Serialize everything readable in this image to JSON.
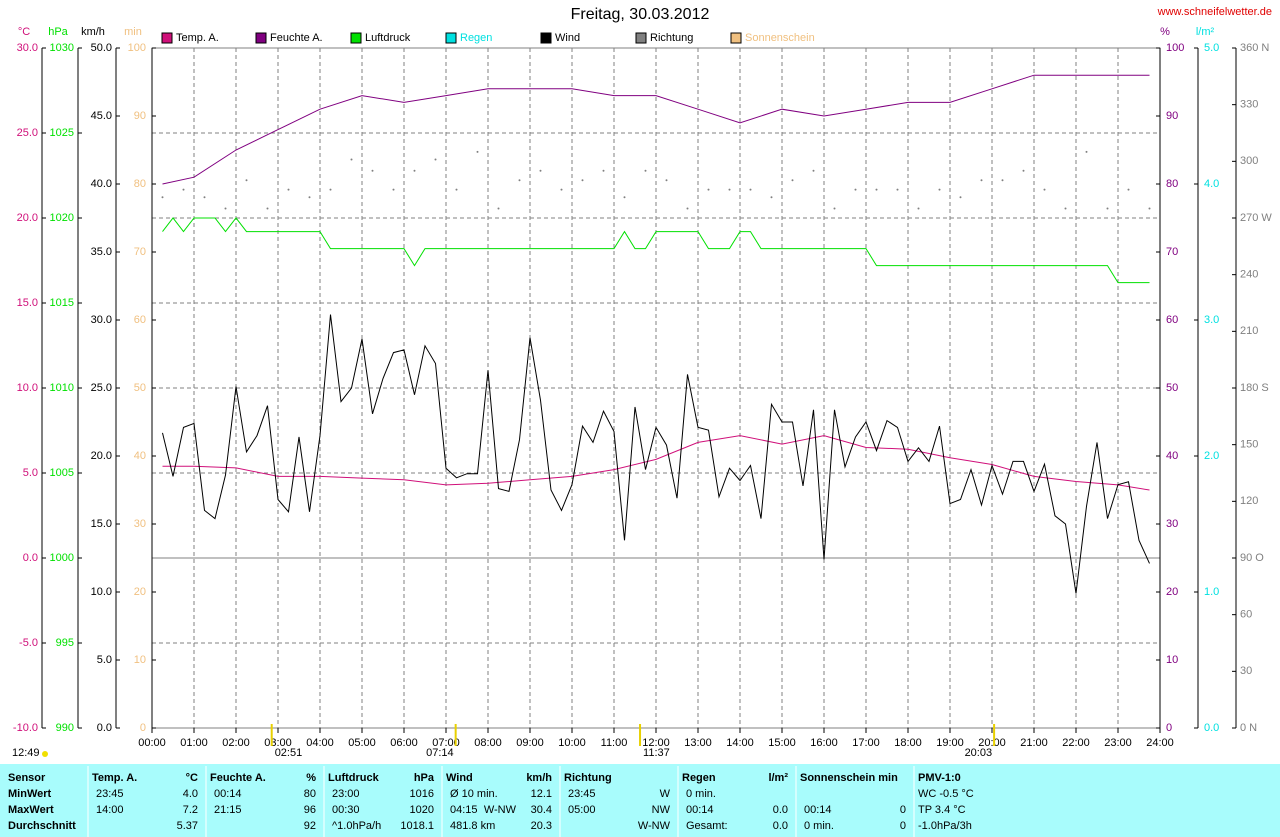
{
  "chart_data": {
    "type": "line",
    "title": "Freitag, 30.03.2012",
    "source": "www.schneifelwetter.de",
    "xlim": [
      0,
      24
    ],
    "xticks": [
      {
        "value": 0,
        "label": "00:00"
      },
      {
        "value": 1,
        "label": "01:00"
      },
      {
        "value": 2,
        "label": "02:00"
      },
      {
        "value": 3,
        "label": "03:00"
      },
      {
        "value": 4,
        "label": "04:00"
      },
      {
        "value": 5,
        "label": "05:00"
      },
      {
        "value": 6,
        "label": "06:00"
      },
      {
        "value": 7,
        "label": "07:00"
      },
      {
        "value": 8,
        "label": "08:00"
      },
      {
        "value": 9,
        "label": "09:00"
      },
      {
        "value": 10,
        "label": "10:00"
      },
      {
        "value": 11,
        "label": "11:00"
      },
      {
        "value": 12,
        "label": "12:00"
      },
      {
        "value": 13,
        "label": "13:00"
      },
      {
        "value": 14,
        "label": "14:00"
      },
      {
        "value": 15,
        "label": "15:00"
      },
      {
        "value": 16,
        "label": "16:00"
      },
      {
        "value": 17,
        "label": "17:00"
      },
      {
        "value": 18,
        "label": "18:00"
      },
      {
        "value": 19,
        "label": "19:00"
      },
      {
        "value": 20,
        "label": "20:00"
      },
      {
        "value": 21,
        "label": "21:00"
      },
      {
        "value": 22,
        "label": "22:00"
      },
      {
        "value": 23,
        "label": "23:00"
      },
      {
        "value": 24,
        "label": "24:00"
      }
    ],
    "grid": true,
    "y_axes": [
      {
        "unit": "°C",
        "lim": [
          -10,
          30
        ],
        "ticks": [
          {
            "value": 30,
            "label": "30.0"
          },
          {
            "value": 25,
            "label": "25.0"
          },
          {
            "value": 20,
            "label": "20.0"
          },
          {
            "value": 15,
            "label": "15.0"
          },
          {
            "value": 10,
            "label": "10.0"
          },
          {
            "value": 5,
            "label": "5.0"
          },
          {
            "value": 0,
            "label": "0.0"
          },
          {
            "value": -5,
            "label": "-5.0"
          },
          {
            "value": -10,
            "label": "-10.0"
          }
        ]
      },
      {
        "unit": "hPa",
        "lim": [
          990,
          1030
        ],
        "ticks": [
          1030,
          1025,
          1020,
          1015,
          1010,
          1005,
          1000,
          995,
          990
        ]
      },
      {
        "unit": "km/h",
        "lim": [
          0,
          50
        ],
        "ticks": [
          {
            "value": 50,
            "label": "50.0"
          },
          {
            "value": 45,
            "label": "45.0"
          },
          {
            "value": 40,
            "label": "40.0"
          },
          {
            "value": 35,
            "label": "35.0"
          },
          {
            "value": 30,
            "label": "30.0"
          },
          {
            "value": 25,
            "label": "25.0"
          },
          {
            "value": 20,
            "label": "20.0"
          },
          {
            "value": 15,
            "label": "15.0"
          },
          {
            "value": 10,
            "label": "10.0"
          },
          {
            "value": 5,
            "label": "5.0"
          },
          {
            "value": 0,
            "label": "0.0"
          }
        ]
      },
      {
        "unit": "min",
        "lim": [
          0,
          100
        ],
        "ticks": [
          100,
          90,
          80,
          70,
          60,
          50,
          40,
          30,
          20,
          10,
          0
        ]
      },
      {
        "unit": "%",
        "lim": [
          0,
          100
        ],
        "ticks": [
          100,
          90,
          80,
          70,
          60,
          50,
          40,
          30,
          20,
          10,
          0
        ]
      },
      {
        "unit": "l/m²",
        "lim": [
          0,
          5
        ],
        "ticks": [
          {
            "value": 5,
            "label": "5.0"
          },
          {
            "value": 4,
            "label": "4.0"
          },
          {
            "value": 3,
            "label": "3.0"
          },
          {
            "value": 2,
            "label": "2.0"
          },
          {
            "value": 1,
            "label": "1.0"
          },
          {
            "value": 0,
            "label": "0.0"
          }
        ]
      },
      {
        "lim": [
          0,
          360
        ],
        "ticks": [
          {
            "value": 360,
            "label": "360 N"
          },
          330,
          300,
          {
            "value": 270,
            "label": "270 W"
          },
          240,
          210,
          {
            "value": 180,
            "label": "180 S"
          },
          150,
          120,
          {
            "value": 90,
            "label": "90 O"
          },
          60,
          30,
          {
            "value": 0,
            "label": "0 N"
          }
        ]
      }
    ],
    "series": [
      {
        "name": "Temp. A.",
        "color": "#d0107a",
        "axis": 0,
        "x": [
          0.25,
          1,
          2,
          3,
          4,
          5,
          6,
          7,
          8,
          9,
          10,
          11,
          12,
          13,
          14,
          15,
          16,
          17,
          18,
          19,
          20,
          21,
          22,
          23,
          23.75
        ],
        "values": [
          5.4,
          5.4,
          5.3,
          4.8,
          4.8,
          4.7,
          4.6,
          4.3,
          4.4,
          4.6,
          4.8,
          5.2,
          5.8,
          6.8,
          7.2,
          6.7,
          7.2,
          6.5,
          6.4,
          5.9,
          5.5,
          4.8,
          4.5,
          4.3,
          4.0
        ]
      },
      {
        "name": "Feuchte A.",
        "color": "#800080",
        "axis": 4,
        "x": [
          0.25,
          1,
          2,
          3,
          4,
          5,
          6,
          7,
          8,
          9,
          10,
          11,
          12,
          13,
          14,
          15,
          16,
          17,
          18,
          19,
          20,
          21,
          22,
          23,
          23.75
        ],
        "values": [
          80,
          81,
          85,
          88,
          91,
          93,
          92,
          93,
          94,
          94,
          94,
          93,
          93,
          91,
          89,
          91,
          90,
          91,
          92,
          92,
          94,
          96,
          96,
          96,
          96
        ]
      },
      {
        "name": "Luftdruck",
        "color": "#00e000",
        "axis": 1,
        "x": [
          0.25,
          0.5,
          0.75,
          1,
          1.5,
          1.75,
          2,
          2.25,
          2.5,
          4,
          4.25,
          6,
          6.25,
          6.5,
          11,
          11.25,
          11.5,
          11.75,
          12,
          13,
          13.25,
          13.75,
          14,
          14.25,
          14.5,
          17,
          17.25,
          22.75,
          23,
          23.75
        ],
        "values": [
          1019.2,
          1020,
          1019.2,
          1020,
          1020,
          1019.2,
          1020,
          1019.2,
          1019.2,
          1019.2,
          1018.2,
          1018.2,
          1017.2,
          1018.2,
          1018.2,
          1019.2,
          1018.2,
          1018.2,
          1019.2,
          1019.2,
          1018.2,
          1018.2,
          1019.2,
          1019.2,
          1018.2,
          1018.2,
          1017.2,
          1017.2,
          1016.2,
          1016.2
        ]
      },
      {
        "name": "Regen",
        "color": "#00e0e0",
        "axis": 5
      },
      {
        "name": "Wind",
        "color": "#000000",
        "axis": 2,
        "x": [
          0.25,
          0.5,
          0.75,
          1,
          1.25,
          1.5,
          1.75,
          2,
          2.25,
          2.5,
          2.75,
          3,
          3.25,
          3.5,
          3.75,
          4,
          4.25,
          4.5,
          4.75,
          5,
          5.25,
          5.5,
          5.75,
          6,
          6.25,
          6.5,
          6.75,
          7,
          7.25,
          7.5,
          7.75,
          8,
          8.25,
          8.5,
          8.75,
          9,
          9.25,
          9.5,
          9.75,
          10,
          10.25,
          10.5,
          10.75,
          11,
          11.25,
          11.5,
          11.75,
          12,
          12.25,
          12.5,
          12.75,
          13,
          13.25,
          13.5,
          13.75,
          14,
          14.25,
          14.5,
          14.75,
          15,
          15.25,
          15.5,
          15.75,
          16,
          16.25,
          16.5,
          16.75,
          17,
          17.25,
          17.5,
          17.75,
          18,
          18.25,
          18.5,
          18.75,
          19,
          19.25,
          19.5,
          19.75,
          20,
          20.25,
          20.5,
          20.75,
          21,
          21.25,
          21.5,
          21.75,
          22,
          22.25,
          22.5,
          22.75,
          23,
          23.25,
          23.5,
          23.75
        ],
        "values": [
          21.7,
          18.5,
          22.1,
          22.4,
          16.0,
          15.4,
          18.6,
          25.1,
          20.3,
          21.5,
          23.7,
          16.8,
          15.9,
          21.4,
          15.9,
          21.5,
          30.4,
          24.0,
          25.0,
          28.6,
          23.1,
          25.7,
          27.6,
          27.8,
          24.5,
          28.1,
          26.8,
          19.1,
          18.4,
          18.7,
          18.7,
          26.3,
          17.6,
          17.4,
          21.2,
          28.7,
          24.1,
          17.5,
          16.0,
          17.9,
          22.2,
          21.0,
          23.3,
          21.8,
          13.8,
          23.6,
          19.0,
          22.1,
          20.8,
          16.9,
          26.0,
          22.1,
          21.9,
          17.0,
          19.1,
          18.2,
          19.3,
          15.4,
          23.8,
          22.5,
          22.5,
          17.8,
          23.4,
          12.4,
          23.4,
          19.2,
          21.4,
          22.5,
          20.4,
          22.6,
          22.1,
          19.6,
          20.6,
          19.6,
          22.2,
          16.5,
          16.8,
          19.0,
          16.4,
          19.3,
          17.2,
          19.6,
          19.6,
          17.4,
          19.4,
          15.6,
          15.0,
          9.9,
          16.3,
          21.0,
          15.4,
          17.9,
          18.1,
          13.8,
          12.1
        ]
      },
      {
        "name": "Richtung",
        "color": "#808080",
        "axis": 6,
        "x": [
          0.25,
          0.75,
          1.25,
          1.75,
          2.25,
          2.75,
          3.25,
          3.75,
          4.25,
          4.75,
          5.25,
          5.75,
          6.25,
          6.75,
          7.25,
          7.75,
          8.25,
          8.75,
          9.25,
          9.75,
          10.25,
          10.75,
          11.25,
          11.75,
          12.25,
          12.75,
          13.25,
          13.75,
          14.25,
          14.75,
          15.25,
          15.75,
          16.25,
          16.75,
          17.25,
          17.75,
          18.25,
          18.75,
          19.25,
          19.75,
          20.25,
          20.75,
          21.25,
          21.75,
          22.25,
          22.75,
          23.25,
          23.75
        ],
        "values": [
          281,
          285,
          281,
          275,
          290,
          275,
          285,
          281,
          285,
          301,
          295,
          285,
          295,
          301,
          285,
          305,
          275,
          290,
          295,
          285,
          290,
          295,
          281,
          295,
          290,
          275,
          285,
          285,
          285,
          281,
          290,
          295,
          275,
          285,
          285,
          285,
          275,
          285,
          281,
          290,
          290,
          295,
          285,
          275,
          305,
          275,
          285,
          275
        ]
      },
      {
        "name": "Sonnenschein",
        "color": "#f0c080",
        "axis": 3
      }
    ],
    "daylength": "12:49",
    "events": [
      {
        "label": "02:51",
        "x": 2.85
      },
      {
        "label": "07:14",
        "x": 7.23
      },
      {
        "label": "11:37",
        "x": 11.62
      },
      {
        "label": "20:03",
        "x": 20.05
      }
    ]
  },
  "stats": {
    "labels": [
      "Sensor",
      "MinWert",
      "MaxWert",
      "Durchschnitt"
    ],
    "groups": [
      {
        "title": "Temp. A.",
        "unit": "°C",
        "rows": [
          {
            "left": "23:45",
            "right": "4.0"
          },
          {
            "left": "14:00",
            "right": "7.2"
          },
          {
            "right": "5.37"
          }
        ]
      },
      {
        "title": "Feuchte A.",
        "unit": "%",
        "rows": [
          {
            "left": "00:14",
            "right": "80"
          },
          {
            "left": "21:15",
            "right": "96"
          },
          {
            "right": "92"
          }
        ]
      },
      {
        "title": "Luftdruck",
        "unit": "hPa",
        "rows": [
          {
            "left": "23:00",
            "right": "1016"
          },
          {
            "left": "00:30",
            "right": "1020"
          },
          {
            "left": "^1.0hPa/h",
            "right": "1018.1"
          }
        ]
      },
      {
        "title": "Wind",
        "unit": "km/h",
        "rows": [
          {
            "left": "Ø 10 min.",
            "right": "12.1"
          },
          {
            "left": "04:15",
            "mid": "W-NW",
            "right": "30.4"
          },
          {
            "left": "481.8 km",
            "right": "20.3"
          }
        ]
      },
      {
        "title": "Richtung",
        "rows": [
          {
            "left": "23:45",
            "right": "W"
          },
          {
            "left": "05:00",
            "right": "NW"
          },
          {
            "right": "W-NW"
          }
        ]
      },
      {
        "title": "Regen",
        "unit": "l/m²",
        "rows": [
          {
            "left": "0 min."
          },
          {
            "left": "00:14",
            "right": "0.0"
          },
          {
            "left": "Gesamt:",
            "right": "0.0"
          }
        ]
      },
      {
        "title": "Sonnenschein min",
        "rows": [
          null,
          {
            "left": "00:14",
            "right": "0"
          },
          {
            "left": "0 min.",
            "right": "0"
          }
        ]
      },
      {
        "title": "PMV-1:0",
        "rows": [
          {
            "left": "WC -0.5 °C"
          },
          {
            "left": "TP 3.4 °C"
          },
          {
            "left": "-1.0hPa/3h"
          }
        ]
      }
    ]
  }
}
